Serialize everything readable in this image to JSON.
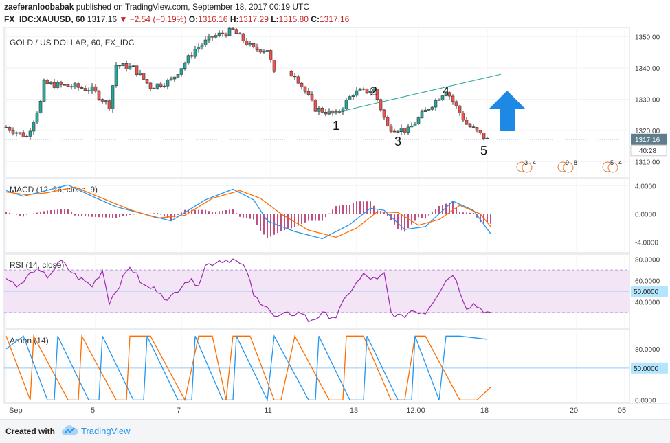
{
  "header": {
    "author": "zaeferanloobabak",
    "published_text": "published on TradingView.com, September 18, 2017 00:19 UTC",
    "symbol": "FX_IDC:XAUUSD, 60",
    "price": "1317.16",
    "change": "−2.54 (−0.19%)",
    "o_label": "O:",
    "o_value": "1316.16",
    "h_label": "H:",
    "h_value": "1317.29",
    "l_label": "L:",
    "l_value": "1315.80",
    "c_label": "C:",
    "c_value": "1317.16"
  },
  "footer": {
    "created_with": "Created with",
    "brand": "TradingView"
  },
  "colors": {
    "up": "#26a69a",
    "down": "#ef5350",
    "macd": "#2196f3",
    "signal": "#ff6d00",
    "rsi": "#9c27b0",
    "aroon_up": "#ff6d00",
    "aroon_down": "#2196f3",
    "trendline": "#26a69a",
    "arrow": "#1e88e5",
    "price_badge": "#607d8b"
  },
  "chart_data": [
    {
      "type": "candlestick",
      "title": "GOLD / US DOLLAR, 60, FX_IDC",
      "ylim": [
        1305,
        1353
      ],
      "y_ticks": [
        "1350.00",
        "1340.00",
        "1330.00",
        "1320.00",
        "1310.00"
      ],
      "x_ticks": [
        "Sep",
        "5",
        "7",
        "11",
        "13",
        "12:00",
        "18",
        "20",
        "05"
      ],
      "last_price": "1317.16",
      "countdown": "40:28",
      "anchors": [
        [
          0,
          1321
        ],
        [
          6,
          1318
        ],
        [
          10,
          1329
        ],
        [
          11,
          1335
        ],
        [
          20,
          1334
        ],
        [
          25,
          1333
        ],
        [
          30,
          1328
        ],
        [
          32,
          1341
        ],
        [
          37,
          1340
        ],
        [
          42,
          1334
        ],
        [
          48,
          1336
        ],
        [
          55,
          1346
        ],
        [
          60,
          1350
        ],
        [
          66,
          1352
        ],
        [
          72,
          1346
        ],
        [
          76,
          1346
        ],
        [
          78,
          1338
        ],
        [
          84,
          1338
        ],
        [
          90,
          1327
        ],
        [
          96,
          1325
        ],
        [
          101,
          1332
        ],
        [
          107,
          1333
        ],
        [
          111,
          1321
        ],
        [
          117,
          1320
        ],
        [
          121,
          1325
        ],
        [
          128,
          1333
        ],
        [
          134,
          1322
        ],
        [
          140,
          1317
        ]
      ],
      "wave_labels": [
        {
          "text": "1",
          "bar": 96,
          "price": 1325
        },
        {
          "text": "2",
          "bar": 107,
          "price": 1333
        },
        {
          "text": "3",
          "bar": 114,
          "price": 1320
        },
        {
          "text": "4",
          "bar": 128,
          "price": 1333
        },
        {
          "text": "5",
          "bar": 139,
          "price": 1317
        }
      ],
      "trendline": [
        [
          97,
          1326
        ],
        [
          144,
          1338
        ]
      ],
      "event_labels": [
        {
          "bar": 150,
          "text": "3",
          "text2": "4"
        },
        {
          "bar": 162,
          "text": "9",
          "text2": "8"
        },
        {
          "bar": 175,
          "text": "5",
          "text2": "4"
        }
      ]
    },
    {
      "type": "line",
      "title": "MACD (12, 26, close, 9)",
      "ylim": [
        -5.5,
        5
      ],
      "y_ticks": [
        "4.0000",
        "0.0000",
        "-4.0000"
      ],
      "series": [
        {
          "name": "MACD",
          "values": [
            [
              0,
              3.3
            ],
            [
              5,
              2.5
            ],
            [
              10,
              3.1
            ],
            [
              18,
              4.1
            ],
            [
              25,
              2.5
            ],
            [
              32,
              1.0
            ],
            [
              40,
              0
            ],
            [
              48,
              -1.0
            ],
            [
              58,
              2
            ],
            [
              66,
              3.5
            ],
            [
              72,
              2
            ],
            [
              76,
              -1
            ],
            [
              84,
              -2.5
            ],
            [
              92,
              -3.5
            ],
            [
              100,
              -1.5
            ],
            [
              106,
              0.8
            ],
            [
              110,
              0.5
            ],
            [
              116,
              -2.2
            ],
            [
              122,
              -1.8
            ],
            [
              130,
              1.8
            ],
            [
              136,
              0.5
            ],
            [
              141,
              -2.8
            ]
          ]
        },
        {
          "name": "Signal",
          "values": [
            [
              0,
              3.1
            ],
            [
              6,
              2.7
            ],
            [
              12,
              3.0
            ],
            [
              20,
              3.8
            ],
            [
              28,
              2.2
            ],
            [
              36,
              0.6
            ],
            [
              44,
              -0.6
            ],
            [
              52,
              -0.2
            ],
            [
              60,
              2.2
            ],
            [
              68,
              3.3
            ],
            [
              74,
              2.2
            ],
            [
              80,
              0
            ],
            [
              88,
              -2.3
            ],
            [
              96,
              -3.3
            ],
            [
              102,
              -2.0
            ],
            [
              108,
              0.3
            ],
            [
              114,
              0.2
            ],
            [
              120,
              -1.6
            ],
            [
              126,
              -0.8
            ],
            [
              132,
              1.2
            ],
            [
              138,
              0
            ],
            [
              141,
              -1.8
            ]
          ]
        }
      ]
    },
    {
      "type": "line",
      "title": "RSI (14, close)",
      "ylim": [
        15,
        85
      ],
      "y_ticks": [
        "80.0000",
        "60.0000",
        "50.0000",
        "40.0000"
      ],
      "band": [
        30,
        70
      ],
      "series": [
        {
          "name": "RSI",
          "values": [
            [
              0,
              62
            ],
            [
              4,
              55
            ],
            [
              8,
              70
            ],
            [
              12,
              64
            ],
            [
              16,
              78
            ],
            [
              20,
              65
            ],
            [
              25,
              55
            ],
            [
              28,
              70
            ],
            [
              30,
              40
            ],
            [
              34,
              62
            ],
            [
              36,
              74
            ],
            [
              40,
              55
            ],
            [
              45,
              50
            ],
            [
              47,
              40
            ],
            [
              52,
              60
            ],
            [
              56,
              58
            ],
            [
              58,
              74
            ],
            [
              62,
              79
            ],
            [
              66,
              80
            ],
            [
              70,
              70
            ],
            [
              72,
              45
            ],
            [
              76,
              36
            ],
            [
              78,
              25
            ],
            [
              82,
              28
            ],
            [
              86,
              30
            ],
            [
              88,
              22
            ],
            [
              92,
              28
            ],
            [
              96,
              26
            ],
            [
              100,
              50
            ],
            [
              104,
              65
            ],
            [
              108,
              60
            ],
            [
              110,
              66
            ],
            [
              112,
              30
            ],
            [
              115,
              25
            ],
            [
              118,
              32
            ],
            [
              122,
              30
            ],
            [
              124,
              40
            ],
            [
              128,
              60
            ],
            [
              130,
              67
            ],
            [
              134,
              35
            ],
            [
              136,
              38
            ],
            [
              141,
              28
            ]
          ]
        }
      ]
    },
    {
      "type": "line",
      "title": "Aroon (14)",
      "ylim": [
        -5,
        110
      ],
      "y_ticks": [
        "80.0000",
        "50.0000",
        "0.0000"
      ],
      "series": [
        {
          "name": "Up",
          "values": [
            [
              0,
              100
            ],
            [
              7,
              0
            ],
            [
              8,
              100
            ],
            [
              18,
              0
            ],
            [
              21,
              0
            ],
            [
              22,
              100
            ],
            [
              32,
              0
            ],
            [
              35,
              0
            ],
            [
              36,
              100
            ],
            [
              42,
              100
            ],
            [
              52,
              0
            ],
            [
              56,
              100
            ],
            [
              60,
              100
            ],
            [
              64,
              0
            ],
            [
              66,
              100
            ],
            [
              71,
              100
            ],
            [
              78,
              0
            ],
            [
              80,
              0
            ],
            [
              84,
              100
            ],
            [
              94,
              0
            ],
            [
              98,
              0
            ],
            [
              99,
              100
            ],
            [
              104,
              100
            ],
            [
              112,
              0
            ],
            [
              116,
              0
            ],
            [
              119,
              100
            ],
            [
              122,
              100
            ],
            [
              132,
              0
            ],
            [
              137,
              0
            ],
            [
              141,
              20
            ]
          ]
        },
        {
          "name": "Down",
          "values": [
            [
              0,
              80
            ],
            [
              5,
              100
            ],
            [
              12,
              0
            ],
            [
              14,
              0
            ],
            [
              15,
              100
            ],
            [
              24,
              0
            ],
            [
              27,
              0
            ],
            [
              28,
              100
            ],
            [
              37,
              0
            ],
            [
              40,
              0
            ],
            [
              41,
              100
            ],
            [
              50,
              0
            ],
            [
              54,
              0
            ],
            [
              55,
              100
            ],
            [
              63,
              0
            ],
            [
              66,
              0
            ],
            [
              67,
              100
            ],
            [
              76,
              0
            ],
            [
              78,
              100
            ],
            [
              88,
              0
            ],
            [
              90,
              0
            ],
            [
              91,
              100
            ],
            [
              100,
              0
            ],
            [
              104,
              0
            ],
            [
              105,
              100
            ],
            [
              114,
              0
            ],
            [
              118,
              0
            ],
            [
              119,
              100
            ],
            [
              126,
              0
            ],
            [
              128,
              100
            ],
            [
              132,
              100
            ],
            [
              140,
              95
            ]
          ]
        }
      ]
    }
  ]
}
